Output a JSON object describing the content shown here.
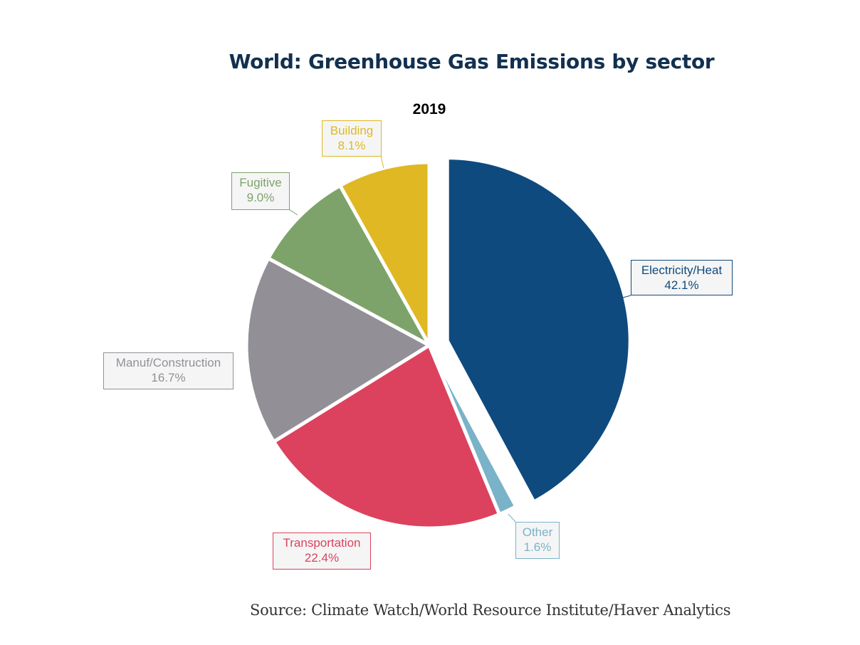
{
  "title": "World: Greenhouse Gas Emissions by sector",
  "source": "Source:  Climate Watch/World Resource Institute/Haver Analytics",
  "chart_data": {
    "type": "pie",
    "title": "World: Greenhouse Gas Emissions by sector",
    "subtitle": "2019",
    "exploded": "Electricity/Heat",
    "slices": [
      {
        "label": "Electricity/Heat",
        "value": 42.1,
        "display": "42.1%",
        "color": "#0f4a7e"
      },
      {
        "label": "Other",
        "value": 1.6,
        "display": "1.6%",
        "color": "#7ab3c8"
      },
      {
        "label": "Transportation",
        "value": 22.4,
        "display": "22.4%",
        "color": "#dc425d"
      },
      {
        "label": "Manuf/Construction",
        "value": 16.7,
        "display": "16.7%",
        "color": "#929096"
      },
      {
        "label": "Fugitive",
        "value": 9.0,
        "display": "9.0%",
        "color": "#7ea36a"
      },
      {
        "label": "Building",
        "value": 8.1,
        "display": "8.1%",
        "color": "#dfb823"
      }
    ]
  }
}
